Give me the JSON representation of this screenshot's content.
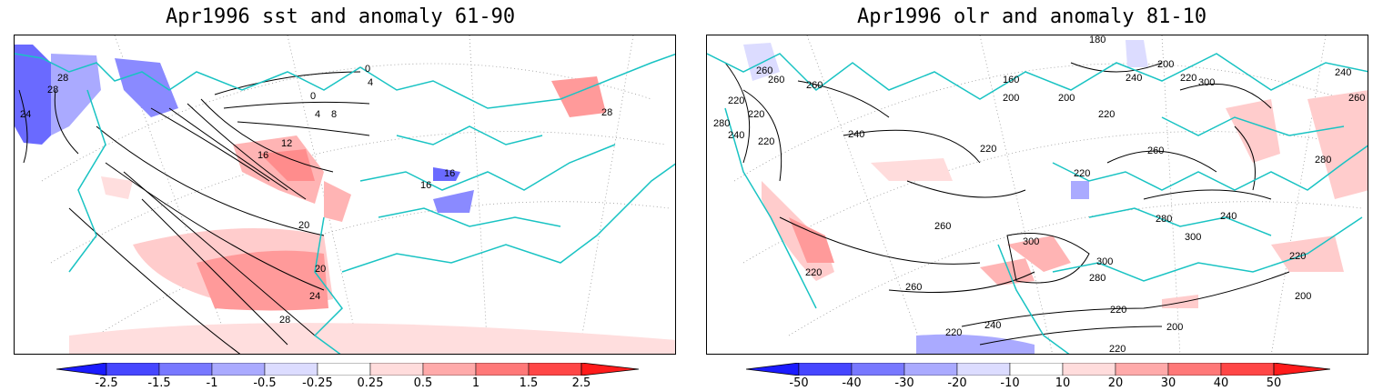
{
  "panels": [
    {
      "title": "Apr1996 sst and anomaly 61-90",
      "colorbar": {
        "labels": [
          "-2.5",
          "-1.5",
          "-1",
          "-0.5",
          "-0.25",
          "0.25",
          "0.5",
          "1",
          "1.5",
          "2.5"
        ],
        "colors": [
          "#1b1bff",
          "#4646ff",
          "#7878ff",
          "#aaaaff",
          "#dcdcff",
          "#ffffff",
          "#ffdcdc",
          "#ffaaaa",
          "#ff7878",
          "#ff4646",
          "#ff1b1b"
        ]
      },
      "contour_labels": [
        "28",
        "28",
        "24",
        "0",
        "4",
        "0",
        "4",
        "8",
        "12",
        "16",
        "16",
        "16",
        "20",
        "20",
        "24",
        "28",
        "28"
      ]
    },
    {
      "title": "Apr1996 olr and anomaly 81-10",
      "colorbar": {
        "labels": [
          "-50",
          "-40",
          "-30",
          "-20",
          "-10",
          "10",
          "20",
          "30",
          "40",
          "50"
        ],
        "colors": [
          "#1b1bff",
          "#4646ff",
          "#7878ff",
          "#aaaaff",
          "#dcdcff",
          "#ffffff",
          "#ffdcdc",
          "#ffaaaa",
          "#ff7878",
          "#ff4646",
          "#ff1b1b"
        ]
      },
      "contour_labels": [
        "260",
        "220",
        "260",
        "280",
        "220",
        "240",
        "220",
        "160",
        "200",
        "180",
        "240",
        "200",
        "220",
        "220",
        "260",
        "240",
        "220",
        "200",
        "240",
        "300",
        "260",
        "280",
        "260",
        "300",
        "240",
        "280",
        "220",
        "260",
        "300",
        "300",
        "280",
        "220",
        "260",
        "220",
        "240",
        "220",
        "200",
        "220",
        "200",
        "220"
      ]
    }
  ],
  "colors": {
    "coast": "#19c3c3",
    "contour": "#000000",
    "grid": "#999999",
    "anomaly_pos": "#ffb4b4",
    "anomaly_pos_strong": "#ff8c8c",
    "anomaly_neg": "#aaaaff",
    "anomaly_neg_strong": "#6a6aff"
  }
}
